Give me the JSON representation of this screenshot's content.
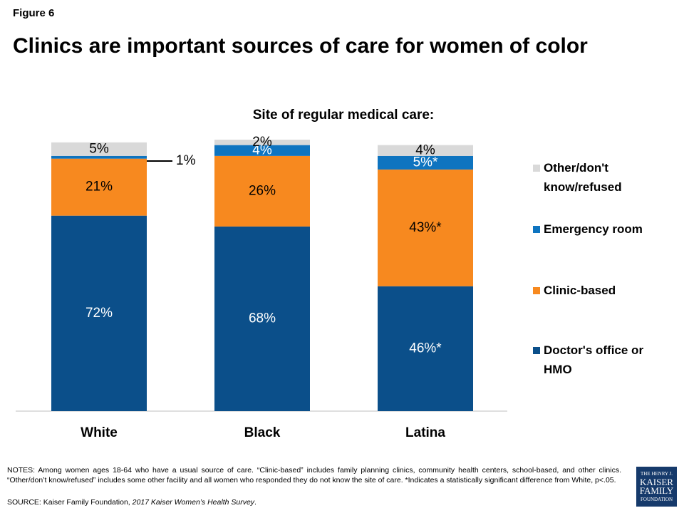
{
  "figure_label": "Figure 6",
  "chart_data": {
    "type": "bar",
    "stacked": true,
    "title": "Clinics are important sources of care for women of color",
    "subtitle": "Site of regular medical care:",
    "categories": [
      "White",
      "Black",
      "Latina"
    ],
    "ylim": [
      0,
      100
    ],
    "series": [
      {
        "name": "Doctor's office or HMO",
        "color": "#0b4f8a",
        "values": [
          72,
          68,
          46
        ],
        "value_labels": [
          "72%",
          "68%",
          "46%*"
        ]
      },
      {
        "name": "Clinic-based",
        "color": "#f7891f",
        "values": [
          21,
          26,
          43
        ],
        "value_labels": [
          "21%",
          "26%",
          "43%*"
        ]
      },
      {
        "name": "Emergency room",
        "color": "#0e74c0",
        "values": [
          1,
          4,
          5
        ],
        "value_labels": [
          "1%",
          "4%",
          "5%*"
        ]
      },
      {
        "name": "Other/don't know/refused",
        "color": "#d9d9d9",
        "values": [
          5,
          2,
          4
        ],
        "value_labels": [
          "5%",
          "2%",
          "4%"
        ]
      }
    ]
  },
  "notes": "NOTES:  Among women ages 18-64 who have a usual source of care. “Clinic-based” includes family planning clinics, community health centers, school-based, and other clinics. “Other/don’t know/refused” includes some other facility and all women who responded they do not know the site of care. *Indicates a statistically significant difference from White, p<.05.",
  "source": [
    "SOURCE:  Kaiser Family Foundation, ",
    "2017 Kaiser Women’s Health Survey",
    "."
  ],
  "logo": [
    "THE HENRY J.",
    "KAISER",
    "FAMILY",
    "FOUNDATION"
  ]
}
